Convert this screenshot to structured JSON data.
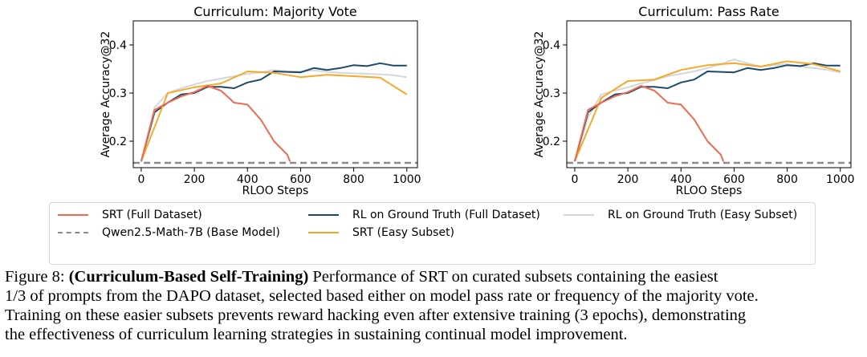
{
  "colors": {
    "srt_full": "#ee6a52",
    "rl_full": "#1b4a6b",
    "rl_easy": "#d4d8dc",
    "srt_easy": "#f6a928",
    "base": "#8a8a8a"
  },
  "chart_data": [
    {
      "type": "line",
      "title": "Curriculum: Majority Vote",
      "xlabel": "RLOO Steps",
      "ylabel": "Average Accuracy@32",
      "xlim": [
        -30,
        1040
      ],
      "ylim": [
        0.145,
        0.45
      ],
      "xticks": [
        0,
        200,
        400,
        600,
        800,
        1000
      ],
      "yticks": [
        0.2,
        0.3,
        0.4
      ],
      "grid": false,
      "series": [
        {
          "key": "rl_easy",
          "name": "RL on Ground Truth (Easy Subset)",
          "x": [
            0,
            50,
            100,
            150,
            200,
            250,
            300,
            350,
            400,
            450,
            500,
            550,
            600,
            650,
            700,
            750,
            800,
            850,
            900,
            950,
            1000
          ],
          "y": [
            0.158,
            0.27,
            0.3,
            0.31,
            0.318,
            0.325,
            0.33,
            0.335,
            0.34,
            0.343,
            0.348,
            0.345,
            0.345,
            0.347,
            0.344,
            0.342,
            0.341,
            0.34,
            0.339,
            0.337,
            0.333
          ]
        },
        {
          "key": "rl_full",
          "name": "RL on Ground Truth (Full Dataset)",
          "x": [
            0,
            50,
            100,
            150,
            200,
            250,
            300,
            350,
            400,
            450,
            500,
            550,
            600,
            650,
            700,
            750,
            800,
            850,
            900,
            950,
            1000
          ],
          "y": [
            0.158,
            0.26,
            0.28,
            0.297,
            0.3,
            0.313,
            0.313,
            0.31,
            0.322,
            0.328,
            0.345,
            0.344,
            0.343,
            0.352,
            0.348,
            0.352,
            0.358,
            0.356,
            0.362,
            0.357,
            0.357
          ]
        },
        {
          "key": "srt_easy",
          "name": "SRT (Easy Subset)",
          "x": [
            0,
            100,
            200,
            300,
            400,
            500,
            600,
            700,
            800,
            900,
            1000
          ],
          "y": [
            0.158,
            0.3,
            0.312,
            0.32,
            0.345,
            0.342,
            0.333,
            0.338,
            0.335,
            0.332,
            0.297
          ]
        },
        {
          "key": "srt_full",
          "name": "SRT (Full Dataset)",
          "x": [
            0,
            50,
            100,
            150,
            200,
            250,
            300,
            350,
            400,
            450,
            500,
            550,
            560
          ],
          "y": [
            0.158,
            0.265,
            0.28,
            0.293,
            0.302,
            0.315,
            0.305,
            0.28,
            0.276,
            0.245,
            0.2,
            0.172,
            0.158
          ]
        },
        {
          "key": "base",
          "name": "Qwen2.5-Math-7B (Base Model)",
          "x": [
            -30,
            1040
          ],
          "y": [
            0.155,
            0.155
          ]
        }
      ]
    },
    {
      "type": "line",
      "title": "Curriculum: Pass Rate",
      "xlabel": "RLOO Steps",
      "ylabel": "Average Accuracy@32",
      "xlim": [
        -30,
        1040
      ],
      "ylim": [
        0.145,
        0.45
      ],
      "xticks": [
        0,
        200,
        400,
        600,
        800,
        1000
      ],
      "yticks": [
        0.2,
        0.3,
        0.4
      ],
      "grid": false,
      "series": [
        {
          "key": "rl_easy",
          "name": "RL on Ground Truth (Easy Subset)",
          "x": [
            0,
            50,
            100,
            150,
            200,
            250,
            300,
            350,
            400,
            450,
            500,
            550,
            600,
            650,
            700,
            750,
            800,
            850,
            900,
            950,
            1000
          ],
          "y": [
            0.158,
            0.25,
            0.297,
            0.305,
            0.312,
            0.32,
            0.327,
            0.335,
            0.34,
            0.345,
            0.352,
            0.36,
            0.37,
            0.362,
            0.355,
            0.358,
            0.36,
            0.355,
            0.352,
            0.348,
            0.343
          ]
        },
        {
          "key": "rl_full",
          "name": "RL on Ground Truth (Full Dataset)",
          "x": [
            0,
            50,
            100,
            150,
            200,
            250,
            300,
            350,
            400,
            450,
            500,
            550,
            600,
            650,
            700,
            750,
            800,
            850,
            900,
            950,
            1000
          ],
          "y": [
            0.158,
            0.26,
            0.28,
            0.297,
            0.3,
            0.313,
            0.313,
            0.31,
            0.322,
            0.328,
            0.345,
            0.344,
            0.343,
            0.352,
            0.348,
            0.352,
            0.358,
            0.356,
            0.362,
            0.357,
            0.357
          ]
        },
        {
          "key": "srt_easy",
          "name": "SRT (Easy Subset)",
          "x": [
            0,
            100,
            200,
            300,
            400,
            500,
            600,
            700,
            800,
            900,
            1000
          ],
          "y": [
            0.158,
            0.29,
            0.325,
            0.328,
            0.348,
            0.358,
            0.362,
            0.355,
            0.366,
            0.36,
            0.345
          ]
        },
        {
          "key": "srt_full",
          "name": "SRT (Full Dataset)",
          "x": [
            0,
            50,
            100,
            150,
            200,
            250,
            300,
            350,
            400,
            450,
            500,
            550,
            560
          ],
          "y": [
            0.158,
            0.265,
            0.28,
            0.293,
            0.302,
            0.315,
            0.305,
            0.28,
            0.276,
            0.245,
            0.2,
            0.172,
            0.158
          ]
        },
        {
          "key": "base",
          "name": "Qwen2.5-Math-7B (Base Model)",
          "x": [
            -30,
            1040
          ],
          "y": [
            0.155,
            0.155
          ]
        }
      ]
    }
  ],
  "legend": {
    "items": [
      {
        "key": "srt_full",
        "label": "SRT (Full Dataset)",
        "style": "solid"
      },
      {
        "key": "base",
        "label": "Qwen2.5-Math-7B (Base Model)",
        "style": "dashed"
      },
      {
        "key": "rl_full",
        "label": "RL on Ground Truth (Full Dataset)",
        "style": "solid"
      },
      {
        "key": "srt_easy",
        "label": "SRT (Easy Subset)",
        "style": "solid"
      },
      {
        "key": "rl_easy",
        "label": "RL on Ground Truth (Easy Subset)",
        "style": "solid"
      }
    ]
  },
  "caption": {
    "prefix": "Figure 8: ",
    "bold": "(Curriculum-Based Self-Training)",
    "line1_rest": " Performance of SRT on curated subsets containing the easiest",
    "line2": "1/3 of prompts from the DAPO dataset, selected based either on model pass rate or frequency of the majority vote.",
    "line3": "Training on these easier subsets prevents reward hacking even after extensive training (3 epochs), demonstrating",
    "line4": "the effectiveness of curriculum learning strategies in sustaining continual model improvement."
  }
}
